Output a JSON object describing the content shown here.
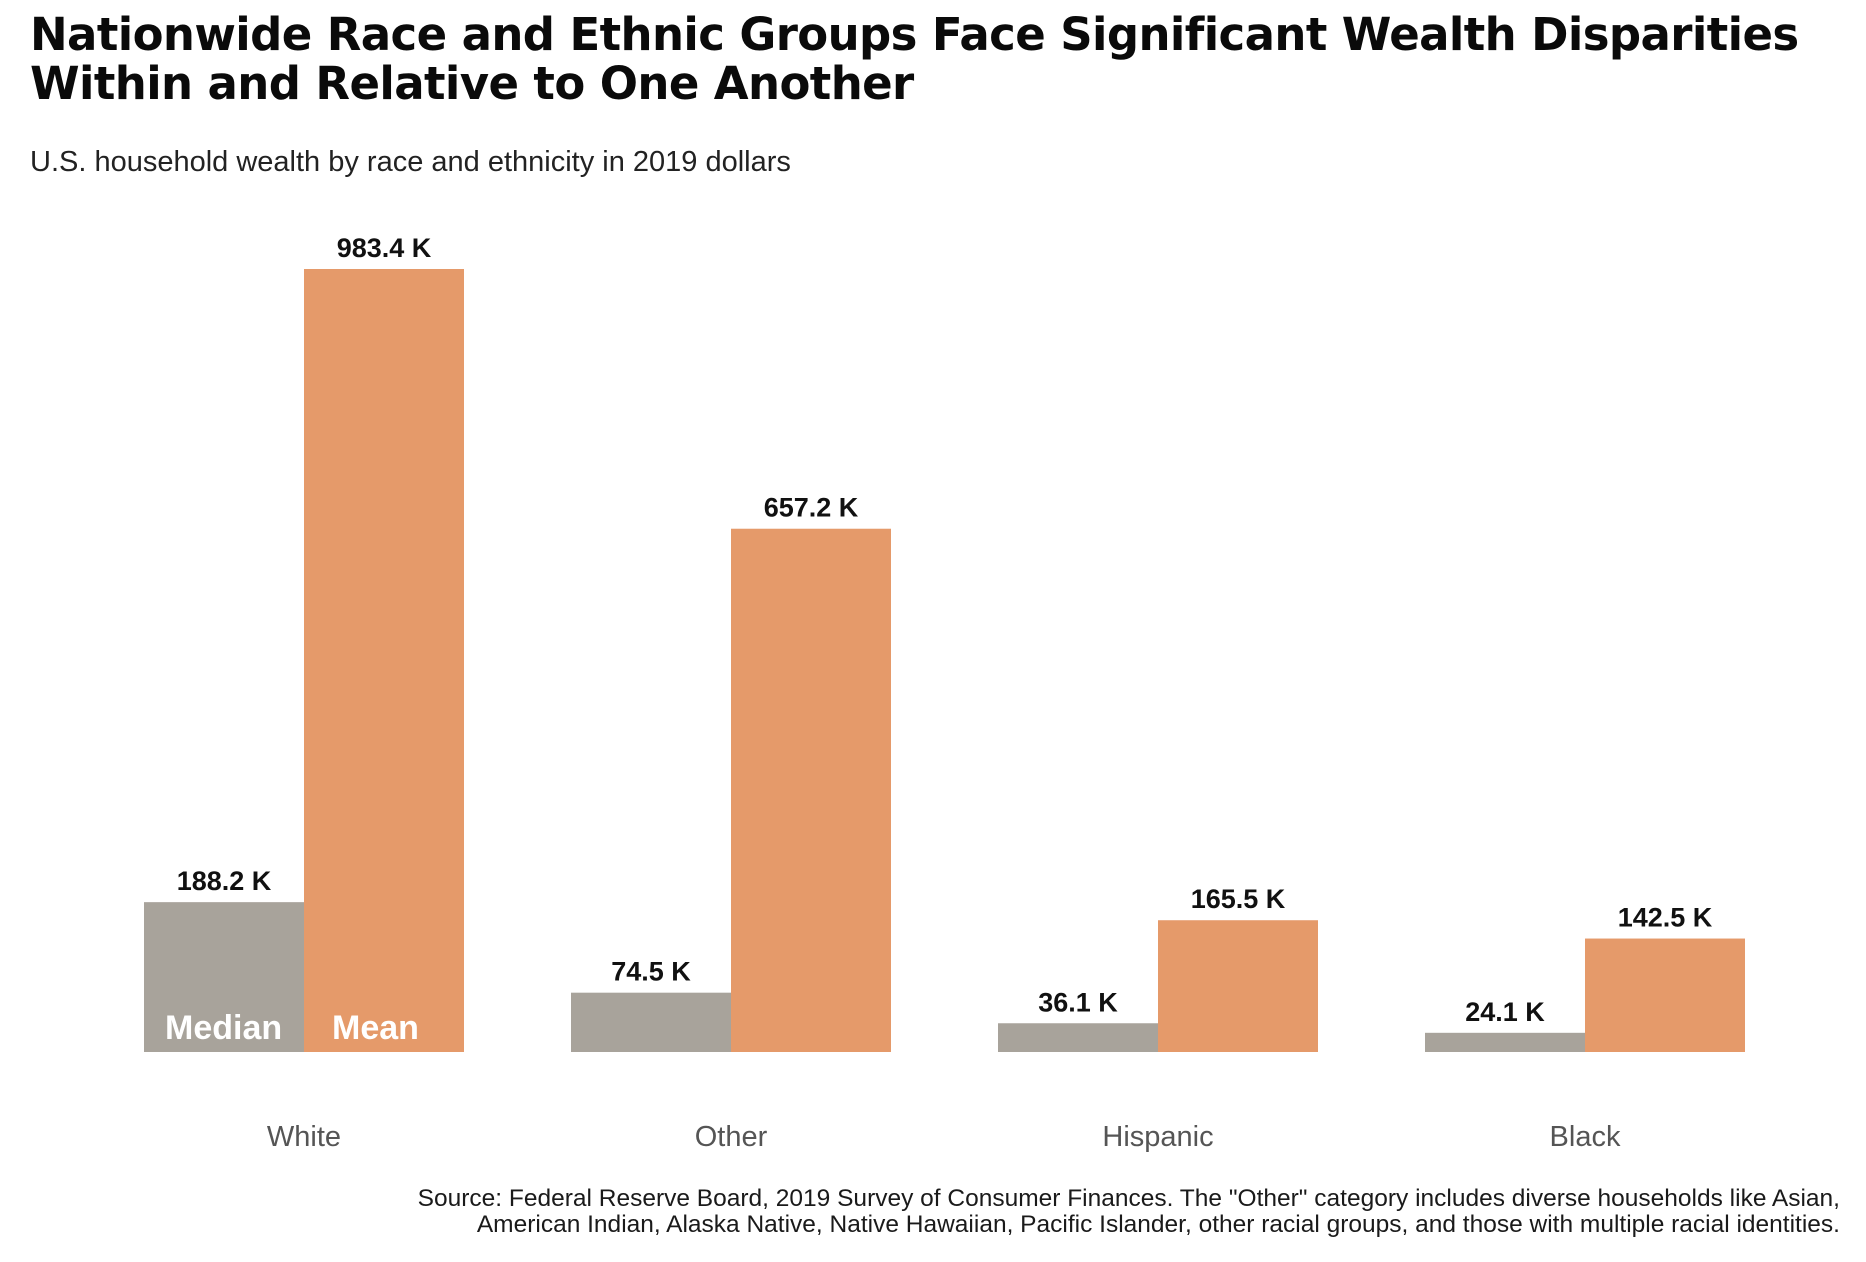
{
  "title_line1": "Nationwide Race and Ethnic Groups Face Significant Wealth Disparities",
  "title_line2": "Within and Relative to One Another",
  "subtitle": "U.S. household wealth by race and ethnicity in 2019 dollars",
  "source_line1": "Source: Federal Reserve Board, 2019 Survey of Consumer Finances. The \"Other\" category includes diverse households like Asian,",
  "source_line2": "American Indian, Alaska Native, Native Hawaiian, Pacific Islander, other racial groups, and those with multiple racial identities.",
  "colors": {
    "median": "#a8a39b",
    "mean": "#e59a6a"
  },
  "chart_data": {
    "type": "bar",
    "categories": [
      "White",
      "Other",
      "Hispanic",
      "Black"
    ],
    "series": [
      {
        "name": "Median",
        "values": [
          188.2,
          74.5,
          36.1,
          24.1
        ],
        "labels": [
          "188.2 K",
          "74.5 K",
          "36.1 K",
          "24.1 K"
        ]
      },
      {
        "name": "Mean",
        "values": [
          983.4,
          657.2,
          165.5,
          142.5
        ],
        "labels": [
          "983.4 K",
          "657.2 K",
          "165.5 K",
          "142.5 K"
        ]
      }
    ],
    "ylim": [
      0,
      1000
    ],
    "grid": false,
    "legend": "inside-first-bars",
    "unit": "K"
  }
}
